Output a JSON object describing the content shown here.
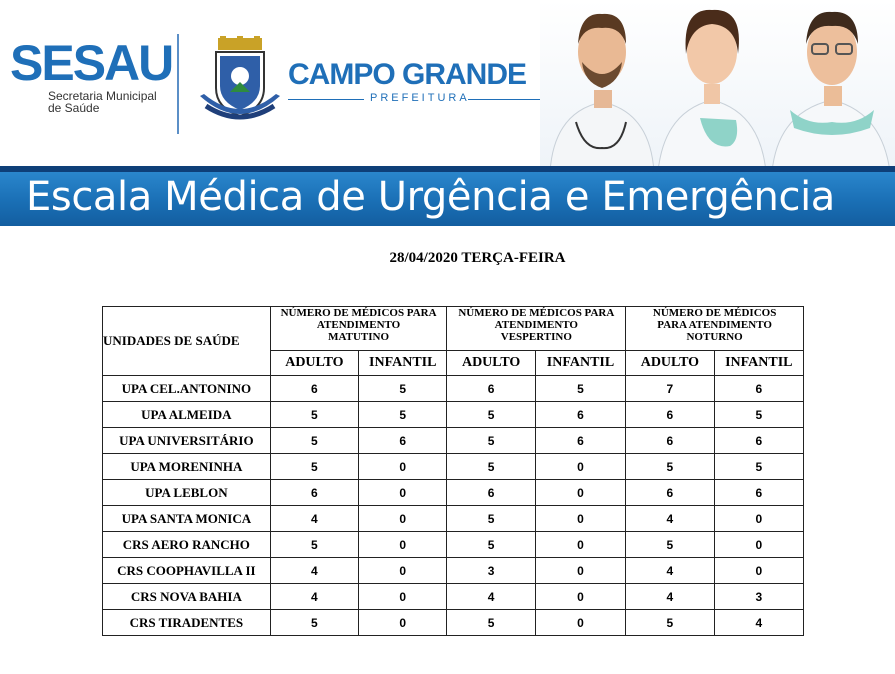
{
  "header": {
    "logo_main": "SESAU",
    "logo_sub_line1": "Secretaria Municipal",
    "logo_sub_line2": "de Saúde",
    "city_logo": "CAMPO GRANDE",
    "city_sub": "PREFEITURA",
    "banner_title": "Escala Médica de Urgência e Emergência"
  },
  "date_title": "28/04/2020 TERÇA-FEIRA",
  "table": {
    "unit_header": "UNIDADES DE SAÚDE",
    "periods": [
      {
        "line1": "NÚMERO DE MÉDICOS PARA",
        "line2": "ATENDIMENTO",
        "line3": "MATUTINO"
      },
      {
        "line1": "NÚMERO DE MÉDICOS PARA",
        "line2": "ATENDIMENTO",
        "line3": "VESPERTINO"
      },
      {
        "line1": "NÚMERO DE MÉDICOS",
        "line2": "PARA ATENDIMENTO",
        "line3": "NOTURNO"
      }
    ],
    "sub_headers": [
      "ADULTO",
      "INFANTIL",
      "ADULTO",
      "INFANTIL",
      "ADULTO",
      "INFANTIL"
    ],
    "rows": [
      {
        "unit": "UPA CEL.ANTONINO",
        "values": [
          "6",
          "5",
          "6",
          "5",
          "7",
          "6"
        ]
      },
      {
        "unit": "UPA ALMEIDA",
        "values": [
          "5",
          "5",
          "5",
          "6",
          "6",
          "5"
        ]
      },
      {
        "unit": "UPA UNIVERSITÁRIO",
        "values": [
          "5",
          "6",
          "5",
          "6",
          "6",
          "6"
        ]
      },
      {
        "unit": "UPA MORENINHA",
        "values": [
          "5",
          "0",
          "5",
          "0",
          "5",
          "5"
        ]
      },
      {
        "unit": "UPA LEBLON",
        "values": [
          "6",
          "0",
          "6",
          "0",
          "6",
          "6"
        ]
      },
      {
        "unit": "UPA SANTA MONICA",
        "values": [
          "4",
          "0",
          "5",
          "0",
          "4",
          "0"
        ]
      },
      {
        "unit": "CRS AERO RANCHO",
        "values": [
          "5",
          "0",
          "5",
          "0",
          "5",
          "0"
        ]
      },
      {
        "unit": "CRS COOPHAVILLA II",
        "values": [
          "4",
          "0",
          "3",
          "0",
          "4",
          "0"
        ]
      },
      {
        "unit": "CRS NOVA BAHIA",
        "values": [
          "4",
          "0",
          "4",
          "0",
          "4",
          "3"
        ]
      },
      {
        "unit": "CRS TIRADENTES",
        "values": [
          "5",
          "0",
          "5",
          "0",
          "5",
          "4"
        ]
      }
    ]
  }
}
